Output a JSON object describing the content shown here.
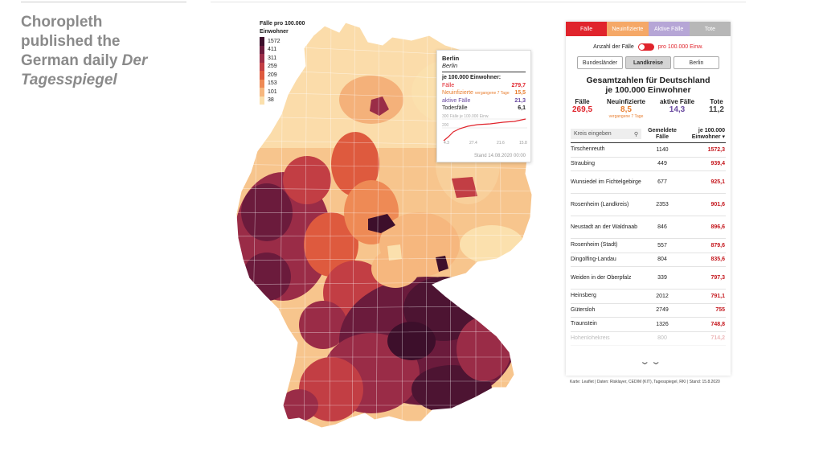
{
  "caption": {
    "line1": "Choropleth",
    "line2": "published the",
    "line3": "German daily ",
    "line3_em": "Der",
    "line4_em": "Tagesspiegel"
  },
  "legend": {
    "title1": "Fälle pro 100.000",
    "title2": "Einwohner",
    "bins": [
      {
        "label": "1572",
        "color": "#3d0f2b"
      },
      {
        "label": "411",
        "color": "#6b1b3c"
      },
      {
        "label": "311",
        "color": "#9a2c47"
      },
      {
        "label": "259",
        "color": "#c23e44"
      },
      {
        "label": "209",
        "color": "#de5a3e"
      },
      {
        "label": "153",
        "color": "#ee8a55"
      },
      {
        "label": "101",
        "color": "#f6b77e"
      },
      {
        "label": "38",
        "color": "#fbe0ad"
      }
    ]
  },
  "tooltip": {
    "name": "Berlin",
    "sub": "Berlin",
    "heading": "je 100.000 Einwohner:",
    "faelle_label": "Fälle",
    "faelle_value": "279,7",
    "neu_label": "Neuinfizierte",
    "neu_note": "vergangene 7 Tage",
    "neu_value": "15,5",
    "aktiv_label": "aktive Fälle",
    "aktiv_value": "21,3",
    "tod_label": "Todesfälle",
    "tod_value": "6,1",
    "chart_label": "300 Fälle je 100.000 Einw.",
    "chart_mid": "200",
    "x_ticks": [
      "4.3",
      "27.4",
      "21.6",
      "15.8"
    ],
    "stand": "Stand 14.08.2020 00:00"
  },
  "panel": {
    "tabs": [
      {
        "label": "Fälle",
        "color": "#e0242c"
      },
      {
        "label": "Neuinfizierte",
        "color": "#f5a867"
      },
      {
        "label": "Aktive Fälle",
        "color": "#b6a6d6"
      },
      {
        "label": "Tote",
        "color": "#b7b7b7"
      }
    ],
    "toggle_left": "Anzahl der Fälle",
    "toggle_right": "pro 100.000 Einw.",
    "segments": [
      "Bundesländer",
      "Landkreise",
      "Berlin"
    ],
    "totals_title1": "Gesamtzahlen für Deutschland",
    "totals_title2": "je 100.000 Einwohner",
    "totals": [
      {
        "label": "Fälle",
        "value": "269,5",
        "color": "#e0242c"
      },
      {
        "label": "Neuinfizierte",
        "value": "8,5",
        "color": "#e87d2e",
        "note": "vergangene 7 Tage"
      },
      {
        "label": "aktive Fälle",
        "value": "14,3",
        "color": "#6a4aa0"
      },
      {
        "label": "Tote",
        "value": "11,2",
        "color": "#444444"
      }
    ],
    "search_placeholder": "Kreis eingeben",
    "col_gemeldete": "Gemeldete Fälle",
    "col_je": "je 100.000 Einwohner ▾",
    "rows": [
      {
        "name": "Tirschenreuth",
        "cases": "1140",
        "per": "1572,3"
      },
      {
        "name": "Straubing",
        "cases": "449",
        "per": "939,4"
      },
      {
        "name": "Wunsiedel im Fichtelgebirge",
        "cases": "677",
        "per": "925,1"
      },
      {
        "name": "Rosenheim (Landkreis)",
        "cases": "2353",
        "per": "901,6"
      },
      {
        "name": "Neustadt an der Waldnaab",
        "cases": "846",
        "per": "896,6"
      },
      {
        "name": "Rosenheim (Stadt)",
        "cases": "557",
        "per": "879,6"
      },
      {
        "name": "Dingolfing-Landau",
        "cases": "804",
        "per": "835,6"
      },
      {
        "name": "Weiden in der Oberpfalz",
        "cases": "339",
        "per": "797,3"
      },
      {
        "name": "Heinsberg",
        "cases": "2012",
        "per": "791,1"
      },
      {
        "name": "Gütersloh",
        "cases": "2749",
        "per": "755"
      },
      {
        "name": "Traunstein",
        "cases": "1326",
        "per": "748,8"
      },
      {
        "name": "Hohenlohekreis",
        "cases": "800",
        "per": "714,2"
      }
    ],
    "more_glyph": "⌄⌄"
  },
  "credit": "Karte: Leaflet | Daten: Risklayer, CEDIM (KIT), Tagesspiegel, RKI | Stand: 15.8.2020"
}
